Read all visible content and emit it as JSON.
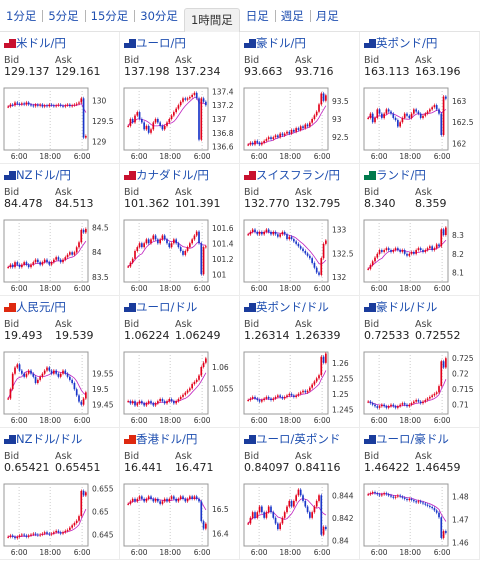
{
  "tabs": [
    {
      "label": "1分足",
      "active": false
    },
    {
      "label": "5分足",
      "active": false
    },
    {
      "label": "15分足",
      "active": false
    },
    {
      "label": "30分足",
      "active": false
    },
    {
      "label": "1時間足",
      "active": true
    },
    {
      "label": "日足",
      "active": false
    },
    {
      "label": "週足",
      "active": false
    },
    {
      "label": "月足",
      "active": false
    }
  ],
  "bid_label": "Bid",
  "ask_label": "Ask",
  "x_ticks": [
    "6:00",
    "18:00",
    "6:00"
  ],
  "colors": {
    "up": "#e2001a",
    "down": "#1a36c9",
    "ma": "#c023c0",
    "link": "#1f4fb0"
  },
  "pairs": [
    {
      "name": "米ドル/円",
      "bid": "129.137",
      "ask": "129.161",
      "flag_icon": "us-flag-icon",
      "flag_color": "#c8102e",
      "chart_data": {
        "type": "candlestick",
        "y_ticks": [
          "130",
          "129.5",
          "129"
        ],
        "y_range": [
          128.8,
          130.3
        ],
        "close": [
          129.85,
          129.9,
          129.88,
          129.95,
          129.92,
          129.9,
          129.93,
          129.9,
          129.95,
          129.9,
          129.88,
          129.86,
          129.9,
          129.87,
          129.9,
          129.85,
          129.88,
          129.86,
          129.9,
          129.88,
          129.86,
          129.88,
          129.9,
          129.87,
          129.85,
          129.88,
          129.9,
          129.86,
          129.88,
          129.9,
          129.92,
          129.95,
          130.05,
          129.1,
          129.14
        ]
      }
    },
    {
      "name": "ユーロ/円",
      "bid": "137.198",
      "ask": "137.234",
      "flag_icon": "eu-flag-icon",
      "flag_color": "#1a3c9c",
      "chart_data": {
        "type": "candlestick",
        "y_ticks": [
          "137.4",
          "137.2",
          "137",
          "136.8",
          "136.6"
        ],
        "y_range": [
          136.55,
          137.45
        ],
        "close": [
          136.9,
          137.0,
          136.95,
          137.05,
          137.1,
          137.0,
          136.95,
          136.85,
          136.9,
          136.8,
          136.85,
          136.95,
          137.0,
          136.95,
          136.9,
          136.85,
          136.9,
          136.95,
          137.0,
          137.05,
          137.1,
          137.15,
          137.2,
          137.25,
          137.3,
          137.28,
          137.3,
          137.32,
          137.35,
          137.38,
          137.3,
          136.7,
          137.3,
          137.25,
          137.2
        ]
      }
    },
    {
      "name": "豪ドル/円",
      "bid": "93.663",
      "ask": "93.716",
      "flag_icon": "au-flag-icon",
      "flag_color": "#1a3c9c",
      "chart_data": {
        "type": "candlestick",
        "y_ticks": [
          "93.5",
          "93",
          "92.5"
        ],
        "y_range": [
          92.15,
          93.85
        ],
        "close": [
          92.3,
          92.35,
          92.3,
          92.4,
          92.35,
          92.3,
          92.35,
          92.4,
          92.45,
          92.5,
          92.45,
          92.5,
          92.55,
          92.5,
          92.6,
          92.55,
          92.6,
          92.65,
          92.6,
          92.7,
          92.65,
          92.75,
          92.7,
          92.8,
          92.75,
          92.85,
          92.8,
          92.9,
          93.0,
          93.1,
          93.2,
          93.4,
          93.7,
          93.5,
          93.65
        ]
      }
    },
    {
      "name": "英ポンド/円",
      "bid": "163.113",
      "ask": "163.196",
      "flag_icon": "gb-flag-icon",
      "flag_color": "#1a3c9c",
      "chart_data": {
        "type": "candlestick",
        "y_ticks": [
          "163",
          "162.5",
          "162"
        ],
        "y_range": [
          161.85,
          163.3
        ],
        "close": [
          162.6,
          162.7,
          162.5,
          162.6,
          162.8,
          162.7,
          162.6,
          162.7,
          162.8,
          162.75,
          162.7,
          162.6,
          162.55,
          162.4,
          162.5,
          162.6,
          162.7,
          162.65,
          162.6,
          162.7,
          162.8,
          162.75,
          162.7,
          162.6,
          162.65,
          162.7,
          162.75,
          162.8,
          162.85,
          162.9,
          162.8,
          162.7,
          162.2,
          163.1,
          163.05
        ]
      }
    },
    {
      "name": "NZドル/円",
      "bid": "84.478",
      "ask": "84.513",
      "flag_icon": "nz-flag-icon",
      "flag_color": "#1a3c9c",
      "chart_data": {
        "type": "candlestick",
        "y_ticks": [
          "84.5",
          "84",
          "83.5"
        ],
        "y_range": [
          83.4,
          84.65
        ],
        "close": [
          83.7,
          83.75,
          83.7,
          83.8,
          83.75,
          83.7,
          83.75,
          83.8,
          83.75,
          83.7,
          83.75,
          83.8,
          83.85,
          83.8,
          83.75,
          83.8,
          83.85,
          83.8,
          83.75,
          83.8,
          83.85,
          83.9,
          83.85,
          83.8,
          83.85,
          83.9,
          83.95,
          84.0,
          83.95,
          84.0,
          84.1,
          84.2,
          84.45,
          84.4,
          84.47
        ]
      }
    },
    {
      "name": "カナダドル/円",
      "bid": "101.362",
      "ask": "101.391",
      "flag_icon": "ca-flag-icon",
      "flag_color": "#c8102e",
      "chart_data": {
        "type": "candlestick",
        "y_ticks": [
          "101.6",
          "101.4",
          "101.2",
          "101"
        ],
        "y_range": [
          100.9,
          101.7
        ],
        "close": [
          101.1,
          101.15,
          101.2,
          101.3,
          101.35,
          101.4,
          101.35,
          101.4,
          101.45,
          101.4,
          101.45,
          101.5,
          101.45,
          101.4,
          101.45,
          101.5,
          101.45,
          101.4,
          101.35,
          101.4,
          101.45,
          101.4,
          101.35,
          101.3,
          101.25,
          101.3,
          101.35,
          101.4,
          101.45,
          101.5,
          101.55,
          101.4,
          101.0,
          101.35,
          101.36
        ]
      }
    },
    {
      "name": "スイスフラン/円",
      "bid": "132.770",
      "ask": "132.795",
      "flag_icon": "ch-flag-icon",
      "flag_color": "#c8102e",
      "chart_data": {
        "type": "candlestick",
        "y_ticks": [
          "133",
          "132.5",
          "132"
        ],
        "y_range": [
          131.9,
          133.2
        ],
        "close": [
          132.9,
          132.95,
          133.0,
          132.95,
          132.9,
          132.95,
          132.9,
          132.95,
          133.0,
          132.95,
          132.9,
          132.95,
          132.9,
          132.85,
          132.9,
          132.95,
          132.9,
          132.8,
          132.85,
          132.8,
          132.75,
          132.7,
          132.65,
          132.6,
          132.55,
          132.5,
          132.45,
          132.4,
          132.3,
          132.2,
          132.1,
          132.05,
          132.4,
          132.7,
          132.77
        ]
      }
    },
    {
      "name": "ランド/円",
      "bid": "8.340",
      "ask": "8.359",
      "flag_icon": "za-flag-icon",
      "flag_color": "#007a4d",
      "chart_data": {
        "type": "candlestick",
        "y_ticks": [
          "8.3",
          "8.2",
          "8.1"
        ],
        "y_range": [
          8.05,
          8.38
        ],
        "close": [
          8.12,
          8.14,
          8.16,
          8.18,
          8.2,
          8.22,
          8.21,
          8.22,
          8.23,
          8.22,
          8.21,
          8.22,
          8.23,
          8.22,
          8.21,
          8.22,
          8.2,
          8.19,
          8.2,
          8.21,
          8.2,
          8.22,
          8.23,
          8.22,
          8.21,
          8.22,
          8.23,
          8.24,
          8.22,
          8.23,
          8.25,
          8.24,
          8.33,
          8.3,
          8.34
        ]
      }
    },
    {
      "name": "人民元/円",
      "bid": "19.493",
      "ask": "19.539",
      "flag_icon": "cn-flag-icon",
      "flag_color": "#de2910",
      "chart_data": {
        "type": "candlestick",
        "y_ticks": [
          "19.55",
          "19.5",
          "19.45"
        ],
        "y_range": [
          19.42,
          19.62
        ],
        "close": [
          19.47,
          19.5,
          19.55,
          19.57,
          19.58,
          19.56,
          19.55,
          19.54,
          19.55,
          19.56,
          19.55,
          19.54,
          19.52,
          19.53,
          19.54,
          19.55,
          19.56,
          19.57,
          19.56,
          19.55,
          19.56,
          19.55,
          19.54,
          19.55,
          19.56,
          19.55,
          19.54,
          19.53,
          19.52,
          19.5,
          19.48,
          19.46,
          19.45,
          19.47,
          19.49
        ]
      }
    },
    {
      "name": "ユーロ/ドル",
      "bid": "1.06224",
      "ask": "1.06249",
      "flag_icon": "eu-flag-icon",
      "flag_color": "#1a3c9c",
      "chart_data": {
        "type": "candlestick",
        "y_ticks": [
          "1.06",
          "1.055"
        ],
        "y_range": [
          1.049,
          1.0635
        ],
        "close": [
          1.052,
          1.0515,
          1.052,
          1.051,
          1.0515,
          1.052,
          1.0515,
          1.051,
          1.0515,
          1.052,
          1.0515,
          1.051,
          1.0515,
          1.052,
          1.0525,
          1.052,
          1.0515,
          1.052,
          1.0525,
          1.052,
          1.0515,
          1.052,
          1.0525,
          1.053,
          1.0535,
          1.054,
          1.0545,
          1.055,
          1.056,
          1.0565,
          1.057,
          1.058,
          1.06,
          1.061,
          1.062
        ]
      }
    },
    {
      "name": "英ポンド/ドル",
      "bid": "1.26314",
      "ask": "1.26339",
      "flag_icon": "gb-flag-icon",
      "flag_color": "#1a3c9c",
      "chart_data": {
        "type": "candlestick",
        "y_ticks": [
          "1.26",
          "1.255",
          "1.25",
          "1.245"
        ],
        "y_range": [
          1.2435,
          1.2635
        ],
        "close": [
          1.248,
          1.2485,
          1.249,
          1.2485,
          1.248,
          1.2475,
          1.248,
          1.2485,
          1.249,
          1.2485,
          1.248,
          1.2485,
          1.249,
          1.2495,
          1.249,
          1.2485,
          1.249,
          1.2495,
          1.25,
          1.2495,
          1.249,
          1.2495,
          1.25,
          1.2505,
          1.251,
          1.2505,
          1.251,
          1.252,
          1.253,
          1.254,
          1.255,
          1.256,
          1.262,
          1.26,
          1.263
        ]
      }
    },
    {
      "name": "豪ドル/ドル",
      "bid": "0.72533",
      "ask": "0.72552",
      "flag_icon": "au-flag-icon",
      "flag_color": "#1a3c9c",
      "chart_data": {
        "type": "candlestick",
        "y_ticks": [
          "0.725",
          "0.72",
          "0.715",
          "0.71"
        ],
        "y_range": [
          0.707,
          0.727
        ],
        "close": [
          0.711,
          0.7105,
          0.71,
          0.7095,
          0.709,
          0.7095,
          0.71,
          0.7095,
          0.709,
          0.7095,
          0.71,
          0.7095,
          0.709,
          0.7095,
          0.71,
          0.7105,
          0.71,
          0.7095,
          0.71,
          0.7105,
          0.711,
          0.7115,
          0.711,
          0.7105,
          0.711,
          0.7115,
          0.712,
          0.7125,
          0.713,
          0.7135,
          0.714,
          0.716,
          0.724,
          0.722,
          0.725
        ]
      }
    },
    {
      "name": "NZドル/ドル",
      "bid": "0.65421",
      "ask": "0.65451",
      "flag_icon": "nz-flag-icon",
      "flag_color": "#1a3c9c",
      "chart_data": {
        "type": "candlestick",
        "y_ticks": [
          "0.655",
          "0.65",
          "0.645"
        ],
        "y_range": [
          0.6425,
          0.656
        ],
        "close": [
          0.6445,
          0.6448,
          0.6445,
          0.6442,
          0.6445,
          0.6448,
          0.645,
          0.6448,
          0.6445,
          0.6448,
          0.645,
          0.6452,
          0.645,
          0.6448,
          0.645,
          0.6452,
          0.6455,
          0.6452,
          0.645,
          0.6452,
          0.6455,
          0.6458,
          0.6455,
          0.6452,
          0.6455,
          0.6458,
          0.646,
          0.6465,
          0.647,
          0.6475,
          0.648,
          0.649,
          0.6545,
          0.6535,
          0.6542
        ]
      }
    },
    {
      "name": "香港ドル/円",
      "bid": "16.441",
      "ask": "16.471",
      "flag_icon": "hk-flag-icon",
      "flag_color": "#de2910",
      "chart_data": {
        "type": "candlestick",
        "y_ticks": [
          "16.5",
          "16.4"
        ],
        "y_range": [
          16.35,
          16.6
        ],
        "close": [
          16.52,
          16.53,
          16.54,
          16.53,
          16.54,
          16.55,
          16.54,
          16.53,
          16.54,
          16.55,
          16.54,
          16.53,
          16.54,
          16.53,
          16.52,
          16.53,
          16.54,
          16.53,
          16.54,
          16.55,
          16.54,
          16.53,
          16.54,
          16.55,
          16.54,
          16.53,
          16.54,
          16.55,
          16.54,
          16.55,
          16.54,
          16.53,
          16.45,
          16.42,
          16.44
        ]
      }
    },
    {
      "name": "ユーロ/英ポンド",
      "bid": "0.84097",
      "ask": "0.84116",
      "flag_icon": "eu-flag-icon",
      "flag_color": "#1a3c9c",
      "chart_data": {
        "type": "candlestick",
        "y_ticks": [
          "0.844",
          "0.842",
          "0.84"
        ],
        "y_range": [
          0.8395,
          0.845
        ],
        "close": [
          0.8415,
          0.842,
          0.8425,
          0.842,
          0.8425,
          0.843,
          0.8425,
          0.842,
          0.8425,
          0.843,
          0.8425,
          0.842,
          0.8415,
          0.841,
          0.8415,
          0.842,
          0.8425,
          0.843,
          0.8435,
          0.843,
          0.8435,
          0.844,
          0.8445,
          0.844,
          0.8435,
          0.843,
          0.8425,
          0.842,
          0.8425,
          0.843,
          0.8435,
          0.844,
          0.8405,
          0.8412,
          0.841
        ]
      }
    },
    {
      "name": "ユーロ/豪ドル",
      "bid": "1.46422",
      "ask": "1.46459",
      "flag_icon": "eu-flag-icon",
      "flag_color": "#1a3c9c",
      "chart_data": {
        "type": "candlestick",
        "y_ticks": [
          "1.48",
          "1.47",
          "1.46"
        ],
        "y_range": [
          1.4585,
          1.4855
        ],
        "close": [
          1.481,
          1.4815,
          1.482,
          1.4815,
          1.481,
          1.4805,
          1.481,
          1.4815,
          1.481,
          1.4805,
          1.48,
          1.4795,
          1.48,
          1.4805,
          1.48,
          1.4795,
          1.479,
          1.4785,
          1.479,
          1.4785,
          1.478,
          1.4775,
          1.478,
          1.4775,
          1.477,
          1.4765,
          1.476,
          1.4755,
          1.475,
          1.474,
          1.473,
          1.471,
          1.462,
          1.465,
          1.4642
        ]
      }
    }
  ]
}
